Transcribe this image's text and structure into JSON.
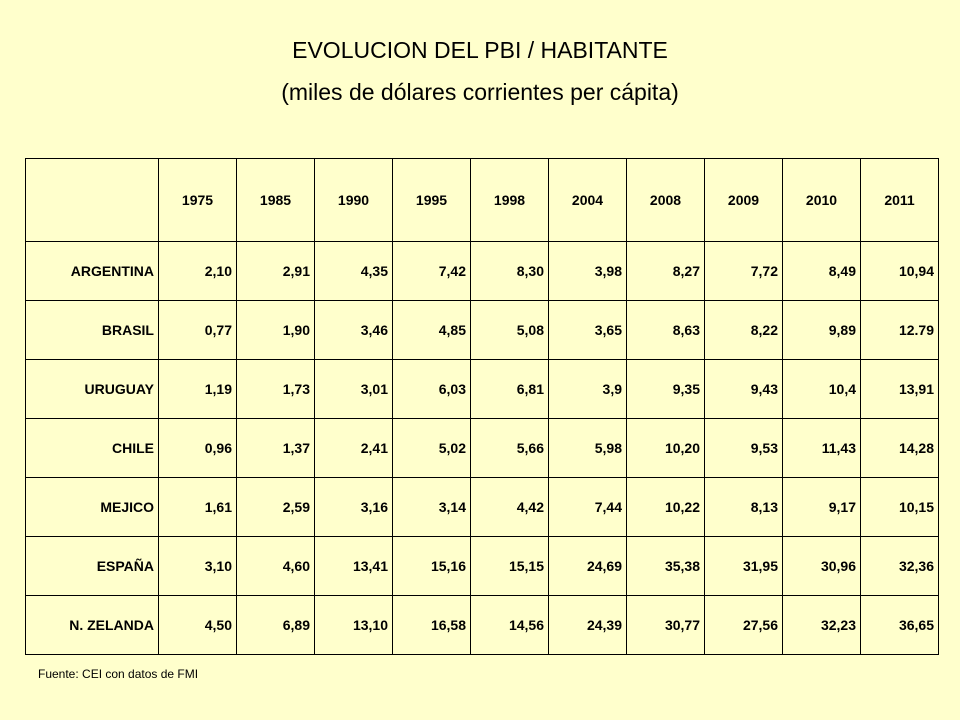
{
  "title": "EVOLUCION DEL PBI / HABITANTE",
  "subtitle": "(miles de dólares corrientes per cápita)",
  "table": {
    "years": [
      "1975",
      "1985",
      "1990",
      "1995",
      "1998",
      "2004",
      "2008",
      "2009",
      "2010",
      "2011"
    ],
    "rows": [
      {
        "country": "ARGENTINA",
        "values": [
          "2,10",
          "2,91",
          "4,35",
          "7,42",
          "8,30",
          "3,98",
          "8,27",
          "7,72",
          "8,49",
          "10,94"
        ]
      },
      {
        "country": "BRASIL",
        "values": [
          "0,77",
          "1,90",
          "3,46",
          "4,85",
          "5,08",
          "3,65",
          "8,63",
          "8,22",
          "9,89",
          "12.79"
        ]
      },
      {
        "country": "URUGUAY",
        "values": [
          "1,19",
          "1,73",
          "3,01",
          "6,03",
          "6,81",
          "3,9",
          "9,35",
          "9,43",
          "10,4",
          "13,91"
        ]
      },
      {
        "country": "CHILE",
        "values": [
          "0,96",
          "1,37",
          "2,41",
          "5,02",
          "5,66",
          "5,98",
          "10,20",
          "9,53",
          "11,43",
          "14,28"
        ]
      },
      {
        "country": "MEJICO",
        "values": [
          "1,61",
          "2,59",
          "3,16",
          "3,14",
          "4,42",
          "7,44",
          "10,22",
          "8,13",
          "9,17",
          "10,15"
        ]
      },
      {
        "country": "ESPAÑA",
        "values": [
          "3,10",
          "4,60",
          "13,41",
          "15,16",
          "15,15",
          "24,69",
          "35,38",
          "31,95",
          "30,96",
          "32,36"
        ]
      },
      {
        "country": "N. ZELANDA",
        "values": [
          "4,50",
          "6,89",
          "13,10",
          "16,58",
          "14,56",
          "24,39",
          "30,77",
          "27,56",
          "32,23",
          "36,65"
        ]
      }
    ]
  },
  "source": "Fuente: CEI con datos de FMI",
  "colors": {
    "background": "#FFFFCC",
    "text": "#000000"
  }
}
